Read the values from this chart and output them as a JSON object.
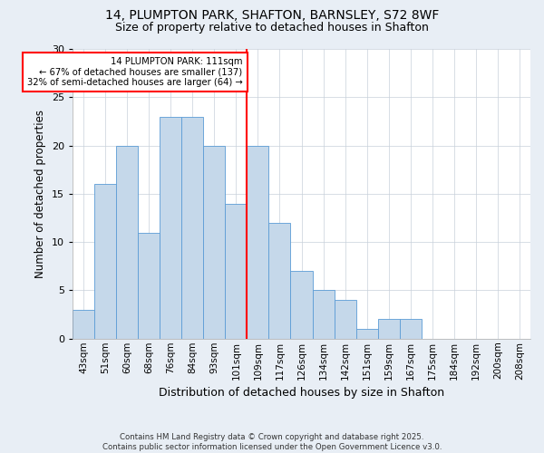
{
  "title_line1": "14, PLUMPTON PARK, SHAFTON, BARNSLEY, S72 8WF",
  "title_line2": "Size of property relative to detached houses in Shafton",
  "xlabel": "Distribution of detached houses by size in Shafton",
  "ylabel": "Number of detached properties",
  "bar_labels": [
    "43sqm",
    "51sqm",
    "60sqm",
    "68sqm",
    "76sqm",
    "84sqm",
    "93sqm",
    "101sqm",
    "109sqm",
    "117sqm",
    "126sqm",
    "134sqm",
    "142sqm",
    "151sqm",
    "159sqm",
    "167sqm",
    "175sqm",
    "184sqm",
    "192sqm",
    "200sqm",
    "208sqm"
  ],
  "bar_values": [
    3,
    16,
    20,
    11,
    23,
    23,
    20,
    14,
    20,
    12,
    7,
    5,
    4,
    1,
    2,
    2,
    0,
    0,
    0,
    0,
    0
  ],
  "bar_color": "#c5d8ea",
  "bar_edge_color": "#5b9bd5",
  "vline_x": 8,
  "vline_color": "red",
  "annotation_text": "14 PLUMPTON PARK: 111sqm\n← 67% of detached houses are smaller (137)\n32% of semi-detached houses are larger (64) →",
  "annotation_box_color": "red",
  "ylim": [
    0,
    30
  ],
  "yticks": [
    0,
    5,
    10,
    15,
    20,
    25,
    30
  ],
  "footnote": "Contains HM Land Registry data © Crown copyright and database right 2025.\nContains public sector information licensed under the Open Government Licence v3.0.",
  "bg_color": "#e8eef5",
  "plot_bg_color": "#ffffff",
  "grid_color": "#c8d0da"
}
